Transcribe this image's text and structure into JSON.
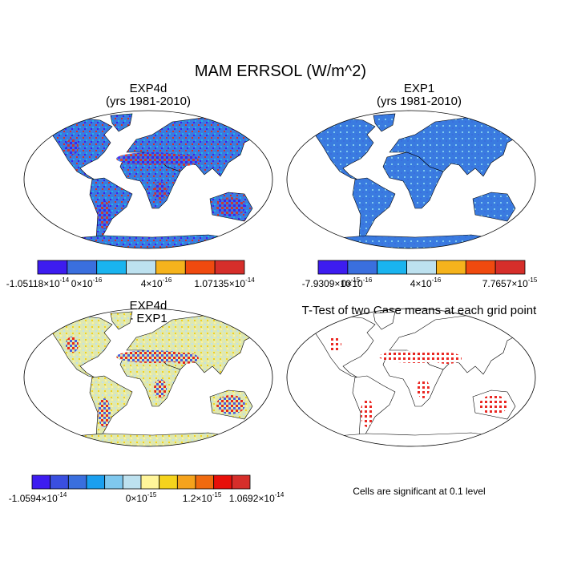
{
  "title": "MAM ERRSOL (W/m^2)",
  "panels": [
    {
      "title": [
        "EXP4d",
        "(yrs 1981-2010)"
      ],
      "colorbar": {
        "colors": [
          "#3d1cf0",
          "#3a6fde",
          "#1ab4ef",
          "#bde1ef",
          "#f5b31c",
          "#f04a0f",
          "#d62e2a"
        ],
        "labels": [
          {
            "mantissa": "-1.05118×10",
            "exponent": "-14"
          },
          {
            "mantissa": "0×10",
            "exponent": "-16"
          },
          {
            "mantissa": "4×10",
            "exponent": "-16"
          },
          {
            "mantissa": "1.07135×10",
            "exponent": "-14"
          }
        ]
      }
    },
    {
      "title": [
        "EXP1",
        "(yrs 1981-2010)"
      ],
      "colorbar": {
        "colors": [
          "#3d1cf0",
          "#3a6fde",
          "#1ab4ef",
          "#bde1ef",
          "#f5b31c",
          "#f04a0f",
          "#d62e2a"
        ],
        "labels": [
          {
            "mantissa": "-7.9309×10",
            "exponent": "-15"
          },
          {
            "mantissa": "0×10",
            "exponent": "-16"
          },
          {
            "mantissa": "4×10",
            "exponent": "-16"
          },
          {
            "mantissa": "7.7657×10",
            "exponent": "-15"
          }
        ]
      }
    },
    {
      "title": [
        "EXP4d",
        "- EXP1"
      ],
      "colorbar": {
        "colors": [
          "#3d1cf0",
          "#3a4fe0",
          "#3a6fde",
          "#1a9fef",
          "#7fc8ee",
          "#bde1ef",
          "#fff59a",
          "#f5d31c",
          "#f5a31c",
          "#f06a0f",
          "#e8100a",
          "#d62e2a"
        ],
        "labels": [
          {
            "mantissa": "-1.0594×10",
            "exponent": "-14"
          },
          {
            "mantissa": "0×10",
            "exponent": "-15"
          },
          {
            "mantissa": "1.2×10",
            "exponent": "-15"
          },
          {
            "mantissa": "1.0692×10",
            "exponent": "-14"
          }
        ]
      }
    },
    {
      "title": [
        "T-Test of two Case means at each grid point"
      ]
    }
  ],
  "note": "Cells are significant at 0.1 level"
}
